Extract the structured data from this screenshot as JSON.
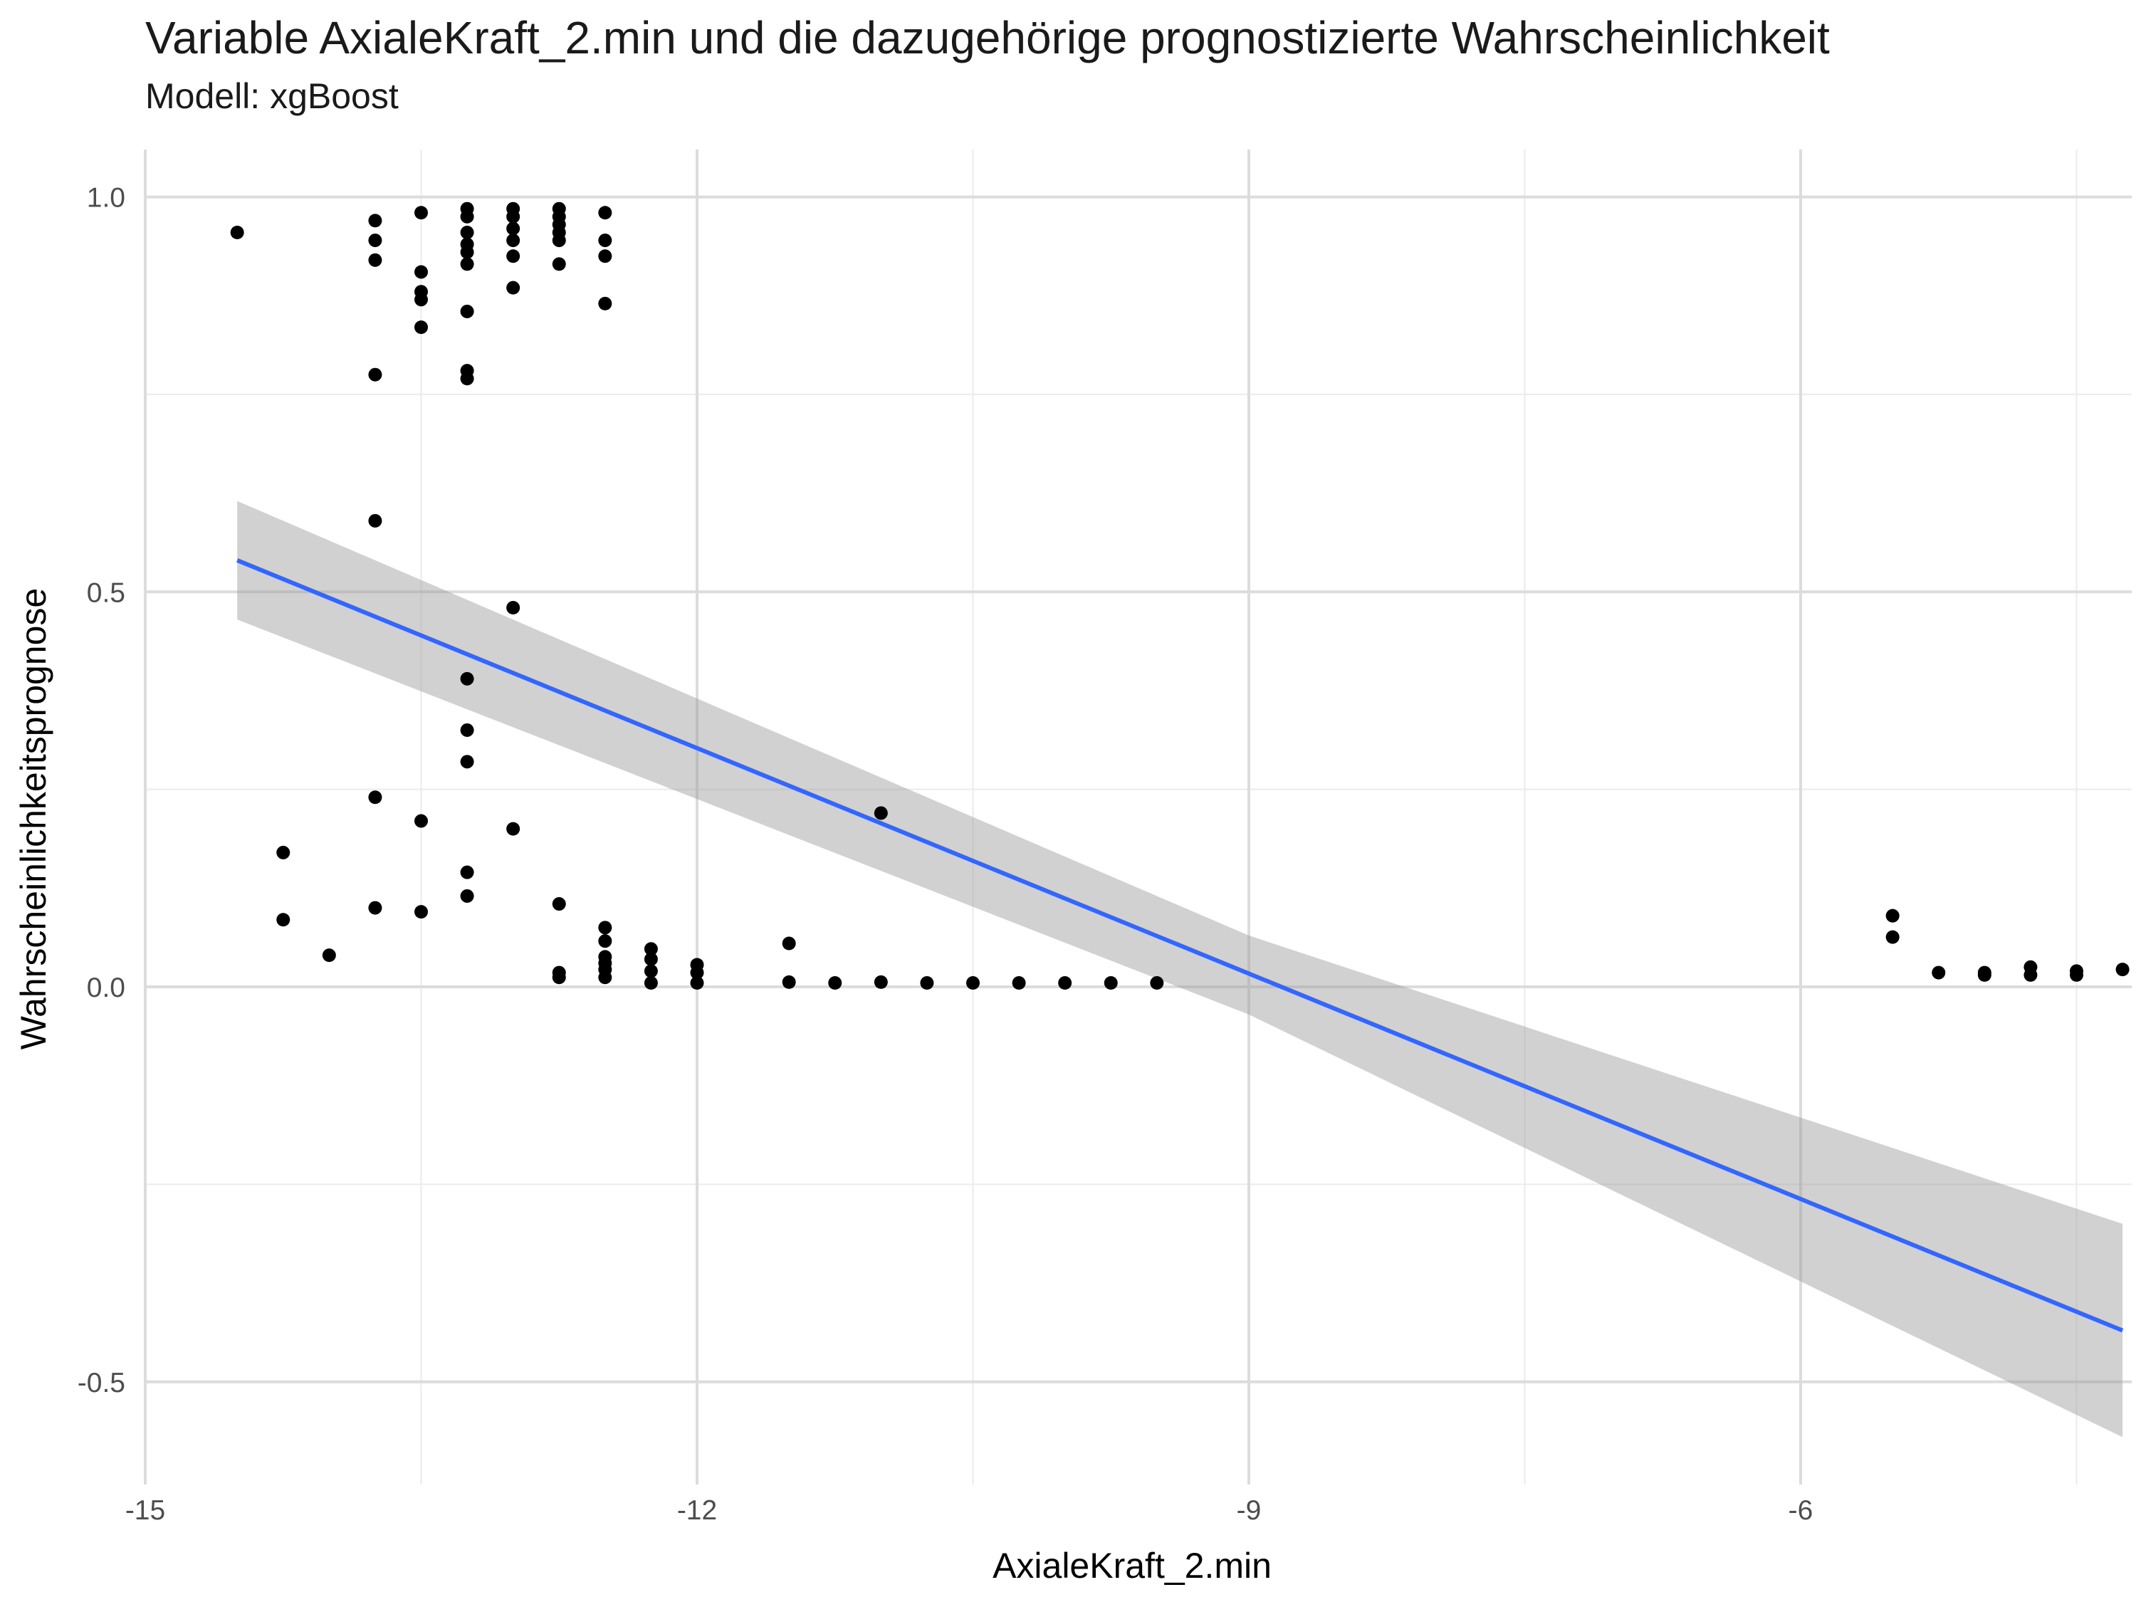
{
  "chart_data": {
    "type": "scatter",
    "title": "Variable AxialeKraft_2.min und die dazugehörige prognostizierte Wahrscheinlichkeit",
    "subtitle": "Modell: xgBoost",
    "xlabel": "AxialeKraft_2.min",
    "ylabel": "Wahrscheinlichkeitsprognose",
    "xlim": [
      -15,
      -4.2
    ],
    "ylim": [
      -0.63,
      1.06
    ],
    "x_ticks": [
      -15,
      -12,
      -9,
      -6
    ],
    "x_tick_labels": [
      "-15",
      "-12",
      "-9",
      "-6"
    ],
    "y_ticks": [
      -0.5,
      0.0,
      0.5,
      1.0
    ],
    "y_tick_labels": [
      "-0.5",
      "0.0",
      "0.5",
      "1.0"
    ],
    "grid": true,
    "point_color": "#000000",
    "line_color": "#3366FF",
    "band_color": "#999999",
    "points": [
      [
        -14.5,
        0.955
      ],
      [
        -14.25,
        0.17
      ],
      [
        -14.25,
        0.085
      ],
      [
        -14.0,
        0.04
      ],
      [
        -13.75,
        0.97
      ],
      [
        -13.75,
        0.945
      ],
      [
        -13.75,
        0.92
      ],
      [
        -13.75,
        0.775
      ],
      [
        -13.75,
        0.59
      ],
      [
        -13.75,
        0.24
      ],
      [
        -13.75,
        0.1
      ],
      [
        -13.5,
        0.98
      ],
      [
        -13.5,
        0.905
      ],
      [
        -13.5,
        0.88
      ],
      [
        -13.5,
        0.87
      ],
      [
        -13.5,
        0.835
      ],
      [
        -13.5,
        0.21
      ],
      [
        -13.5,
        0.095
      ],
      [
        -13.25,
        0.985
      ],
      [
        -13.25,
        0.975
      ],
      [
        -13.25,
        0.955
      ],
      [
        -13.25,
        0.94
      ],
      [
        -13.25,
        0.93
      ],
      [
        -13.25,
        0.915
      ],
      [
        -13.25,
        0.855
      ],
      [
        -13.25,
        0.78
      ],
      [
        -13.25,
        0.77
      ],
      [
        -13.25,
        0.39
      ],
      [
        -13.25,
        0.325
      ],
      [
        -13.25,
        0.285
      ],
      [
        -13.25,
        0.145
      ],
      [
        -13.25,
        0.115
      ],
      [
        -13.0,
        0.985
      ],
      [
        -13.0,
        0.975
      ],
      [
        -13.0,
        0.96
      ],
      [
        -13.0,
        0.945
      ],
      [
        -13.0,
        0.925
      ],
      [
        -13.0,
        0.885
      ],
      [
        -13.0,
        0.48
      ],
      [
        -13.0,
        0.2
      ],
      [
        -12.75,
        0.985
      ],
      [
        -12.75,
        0.975
      ],
      [
        -12.75,
        0.965
      ],
      [
        -12.75,
        0.955
      ],
      [
        -12.75,
        0.945
      ],
      [
        -12.75,
        0.915
      ],
      [
        -12.75,
        0.105
      ],
      [
        -12.75,
        0.018
      ],
      [
        -12.75,
        0.012
      ],
      [
        -12.5,
        0.98
      ],
      [
        -12.5,
        0.945
      ],
      [
        -12.5,
        0.925
      ],
      [
        -12.5,
        0.865
      ],
      [
        -12.5,
        0.075
      ],
      [
        -12.5,
        0.058
      ],
      [
        -12.5,
        0.038
      ],
      [
        -12.5,
        0.03
      ],
      [
        -12.5,
        0.022
      ],
      [
        -12.5,
        0.012
      ],
      [
        -12.25,
        0.048
      ],
      [
        -12.25,
        0.035
      ],
      [
        -12.25,
        0.02
      ],
      [
        -12.25,
        0.005
      ],
      [
        -12.0,
        0.028
      ],
      [
        -12.0,
        0.018
      ],
      [
        -12.0,
        0.005
      ],
      [
        -11.5,
        0.055
      ],
      [
        -11.5,
        0.006
      ],
      [
        -11.25,
        0.005
      ],
      [
        -11.0,
        0.22
      ],
      [
        -11.0,
        0.006
      ],
      [
        -10.75,
        0.005
      ],
      [
        -10.5,
        0.005
      ],
      [
        -10.25,
        0.005
      ],
      [
        -10.0,
        0.005
      ],
      [
        -9.75,
        0.005
      ],
      [
        -9.5,
        0.005
      ],
      [
        -5.5,
        0.09
      ],
      [
        -5.5,
        0.063
      ],
      [
        -5.25,
        0.018
      ],
      [
        -5.0,
        0.018
      ],
      [
        -5.0,
        0.015
      ],
      [
        -4.75,
        0.025
      ],
      [
        -4.75,
        0.015
      ],
      [
        -4.5,
        0.02
      ],
      [
        -4.5,
        0.015
      ],
      [
        -4.25,
        0.022
      ]
    ],
    "fit_line": {
      "x": [
        -14.5,
        -4.25
      ],
      "y": [
        0.54,
        -0.435
      ]
    },
    "confidence_band": {
      "x": [
        -14.5,
        -9.0,
        -4.25
      ],
      "upper": [
        0.615,
        0.065,
        -0.3
      ],
      "lower": [
        0.465,
        -0.035,
        -0.57
      ]
    }
  }
}
